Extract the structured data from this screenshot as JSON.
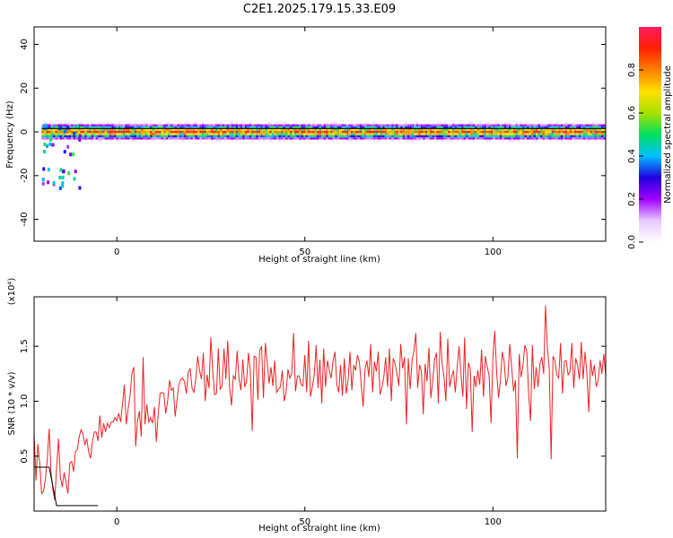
{
  "title": "C2E1.2025.179.15.33.E09",
  "colors": {
    "spectrum_gradient": [
      "#ffffff",
      "#e8c8ff",
      "#a000ff",
      "#2000e0",
      "#00c0ff",
      "#00e060",
      "#a8e000",
      "#ffe000",
      "#ff8000",
      "#ff2000",
      "#ff1a60"
    ],
    "snr_line": "#ee2222",
    "trend_line": "#000000"
  },
  "chart_data": [
    {
      "type": "heatmap",
      "xlabel": "Height of straight line (km)",
      "ylabel": "Frequency (Hz)",
      "xlim": [
        -22,
        130
      ],
      "ylim": [
        -50,
        48
      ],
      "xticks": [
        0,
        50,
        100
      ],
      "yticks": [
        40,
        20,
        0,
        -20,
        -40
      ],
      "grid": false,
      "colorbar": {
        "label": "Normalized spectral amplitude",
        "range": [
          0,
          1
        ],
        "ticks": [
          "0.0",
          "0.2",
          "0.4",
          "0.6",
          "0.8"
        ]
      }
    },
    {
      "type": "line",
      "xlabel": "Height of straight line (km)",
      "ylabel": "SNR (10 * v/v)",
      "y_multiplier": "(x10⁴)",
      "xlim": [
        -22,
        130
      ],
      "ylim": [
        0,
        1.95
      ],
      "xticks": [
        0,
        50,
        100
      ],
      "yticks": [
        "0.5",
        "1.0",
        "1.5"
      ],
      "grid": false,
      "series": [
        {
          "x_range": [
            -22,
            130
          ],
          "values": [
            0.72,
            0.28,
            0.61,
            0.43,
            0.16,
            0.18,
            0.29,
            0.47,
            0.75,
            0.35,
            0.19,
            0.1,
            0.4,
            0.66,
            0.31,
            0.22,
            0.35,
            0.26,
            0.16,
            0.44,
            0.45,
            0.36,
            0.54,
            0.56,
            0.68,
            0.74,
            0.7,
            0.6,
            0.66,
            0.54,
            0.48,
            0.63,
            0.72,
            0.72,
            0.64,
            0.87,
            0.67,
            0.8,
            0.72,
            0.8,
            0.76,
            0.81,
            0.81,
            0.85,
            0.82,
            0.89,
            0.81,
            0.97,
            1.15,
            0.79,
            0.93,
            1.05,
            1.25,
            1.31,
            0.59,
            0.82,
            0.91,
            0.68,
            1.4,
            0.79,
            0.97,
            0.81,
            0.85,
            0.8,
            0.95,
            0.63,
            0.88,
            1.07,
            1.08,
            1.07,
            0.89,
            1.0,
            1.19,
            1.1,
            1.12,
            0.86,
            1.01,
            1.15,
            1.2,
            1.21,
            1.18,
            1.07,
            1.26,
            1.3,
            1.12,
            1.08,
            1.2,
            1.41,
            1.28,
            1.2,
            1.44,
            1.0,
            1.24,
            1.12,
            1.58,
            1.27,
            1.06,
            1.07,
            1.48,
            1.11,
            1.14,
            1.48,
            1.2,
            1.55,
            1.12,
            0.96,
            1.23,
            1.2,
            1.46,
            1.2,
            1.1,
            1.38,
            1.13,
            1.18,
            1.44,
            1.27,
            0.73,
            1.41,
            1.4,
            1.01,
            1.46,
            1.5,
            1.03,
            1.53,
            1.35,
            1.16,
            1.31,
            1.14,
            1.37,
            1.08,
            1.11,
            1.13,
            1.28,
            1.0,
            1.08,
            1.29,
            1.21,
            1.25,
            1.62,
            1.09,
            1.23,
            1.23,
            1.15,
            1.14,
            1.42,
            1.08,
            1.55,
            1.04,
            1.13,
            1.24,
            1.51,
            1.12,
            1.38,
            0.98,
            1.48,
            1.13,
            1.37,
            1.28,
            1.21,
            1.37,
            1.45,
            1.15,
            1.08,
            1.33,
            1.05,
            1.39,
            1.07,
            1.19,
            1.45,
            1.1,
            1.33,
            1.28,
            1.42,
            1.36,
            1.14,
            0.95,
            1.29,
            1.37,
            1.22,
            1.52,
            1.08,
            1.36,
            1.27,
            1.45,
            1.06,
            1.12,
            1.22,
            1.4,
            1.13,
            1.48,
            1.0,
            1.39,
            1.34,
            1.25,
            1.14,
            1.52,
            1.3,
            1.4,
            0.79,
            1.39,
            1.11,
            1.37,
            1.46,
            1.62,
            1.12,
            1.33,
            1.27,
            0.88,
            1.34,
            1.18,
            1.49,
            1.03,
            1.18,
            1.38,
            1.44,
            0.98,
            1.63,
            1.34,
            1.22,
            1.0,
            1.57,
            1.13,
            1.22,
            1.28,
            1.08,
            1.31,
            1.5,
            1.25,
            1.04,
            1.58,
            0.93,
            1.35,
            1.29,
            0.72,
            1.23,
            1.13,
            1.28,
            1.15,
            1.47,
            1.04,
            1.41,
            1.31,
            1.23,
            0.8,
            1.4,
            1.64,
            1.26,
            1.03,
            1.19,
            1.45,
            1.36,
            1.14,
            1.22,
            1.52,
            1.31,
            1.09,
            1.19,
            0.48,
            1.43,
            1.22,
            1.32,
            1.51,
            1.46,
            1.07,
            0.82,
            1.51,
            1.11,
            1.31,
            1.13,
            1.34,
            1.4,
            1.25,
            1.87,
            1.49,
            1.3,
            0.47,
            1.41,
            1.37,
            1.24,
            1.21,
            1.53,
            1.07,
            1.36,
            1.37,
            1.24,
            1.27,
            1.53,
            1.12,
            1.39,
            1.33,
            1.2,
            1.54,
            1.2,
            1.45,
            1.26,
            0.9,
            1.38,
            1.23,
            1.33,
            1.13,
            1.19,
            1.37,
            1.25,
            1.43,
            1.23
          ]
        },
        {
          "name": "",
          "style": "step",
          "x": [
            -22,
            -18,
            -16,
            -12,
            -8,
            -5
          ],
          "values": [
            0.4,
            0.4,
            0.05,
            0.05,
            0.05,
            0.05
          ]
        }
      ]
    }
  ]
}
